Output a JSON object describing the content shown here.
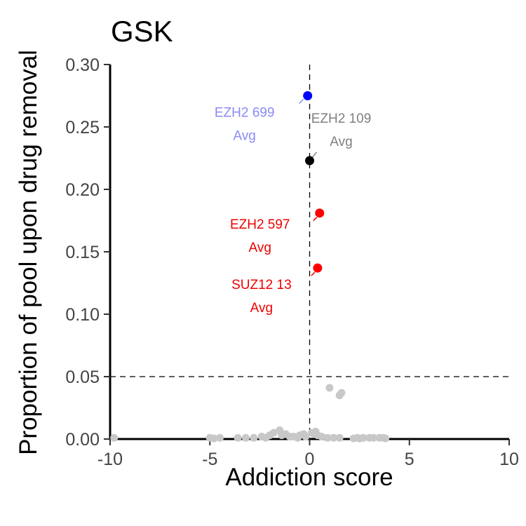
{
  "chart_data": {
    "type": "scatter",
    "title": "GSK",
    "xlabel": "Addiction score",
    "ylabel": "Proportion of pool upon drug removal",
    "xlim": [
      -10,
      10
    ],
    "ylim": [
      0,
      0.3
    ],
    "x_ticks": [
      "-10",
      "-5",
      "0",
      "5",
      "10"
    ],
    "y_ticks": [
      "0.00",
      "0.05",
      "0.10",
      "0.15",
      "0.20",
      "0.25",
      "0.30"
    ],
    "x_tick_values": [
      -10,
      -5,
      0,
      5,
      10
    ],
    "y_tick_values": [
      0,
      0.05,
      0.1,
      0.15,
      0.2,
      0.25,
      0.3
    ],
    "grid": false,
    "reference_lines": {
      "vertical_x": 0,
      "horizontal_y": 0.05
    },
    "colors": {
      "background_points": "#c8c8c8",
      "blue": "#0000ff",
      "blue_label": "#8a8af5",
      "black": "#000000",
      "grey_label": "#808080",
      "red": "#ff0000",
      "red_label": "#ee0000"
    },
    "labeled_points": [
      {
        "x": -0.1,
        "y": 0.275,
        "color": "#0000ff",
        "label_lines": [
          "EZH2 699",
          "Avg"
        ],
        "label_color": "#8a8af5"
      },
      {
        "x": 0.0,
        "y": 0.223,
        "color": "#000000",
        "label_lines": [
          "EZH2 109",
          "Avg"
        ],
        "label_color": "#808080"
      },
      {
        "x": 0.5,
        "y": 0.181,
        "color": "#ff0000",
        "label_lines": [
          "EZH2 597",
          "Avg"
        ],
        "label_color": "#ee0000"
      },
      {
        "x": 0.4,
        "y": 0.137,
        "color": "#ff0000",
        "label_lines": [
          "SUZ12 13",
          "Avg"
        ],
        "label_color": "#ee0000"
      }
    ],
    "background_points": [
      [
        1.0,
        0.041
      ],
      [
        1.5,
        0.035
      ],
      [
        1.6,
        0.037
      ],
      [
        -1.5,
        0.007
      ],
      [
        -1.8,
        0.005
      ],
      [
        -2.0,
        0.003
      ],
      [
        -1.2,
        0.004
      ],
      [
        -0.5,
        0.003
      ],
      [
        0.2,
        0.004
      ],
      [
        0.4,
        0.003
      ],
      [
        0.6,
        0.002
      ],
      [
        -0.8,
        0.002
      ],
      [
        -2.4,
        0.002
      ],
      [
        -2.8,
        0.001
      ],
      [
        -3.2,
        0.001
      ],
      [
        -4.5,
        0.001
      ],
      [
        -5.0,
        0.001
      ],
      [
        -4.8,
        0.0005
      ],
      [
        -0.2,
        0.002
      ],
      [
        -1.0,
        0.002
      ],
      [
        0.9,
        0.001
      ],
      [
        1.2,
        0.001
      ],
      [
        1.5,
        0.001
      ],
      [
        2.4,
        0.001
      ],
      [
        2.7,
        0.001
      ],
      [
        3.0,
        0.001
      ],
      [
        3.2,
        0.001
      ],
      [
        3.5,
        0.001
      ],
      [
        3.7,
        0.001
      ],
      [
        3.8,
        0.0005
      ],
      [
        2.5,
        0.0005
      ],
      [
        -9.8,
        0.001
      ],
      [
        -3.6,
        0.001
      ],
      [
        -2.2,
        0.001
      ],
      [
        -1.4,
        0.003
      ],
      [
        -0.3,
        0.004
      ],
      [
        0.1,
        0.005
      ],
      [
        0.3,
        0.006
      ],
      [
        -0.6,
        0.001
      ],
      [
        2.2,
        0.0005
      ]
    ]
  }
}
